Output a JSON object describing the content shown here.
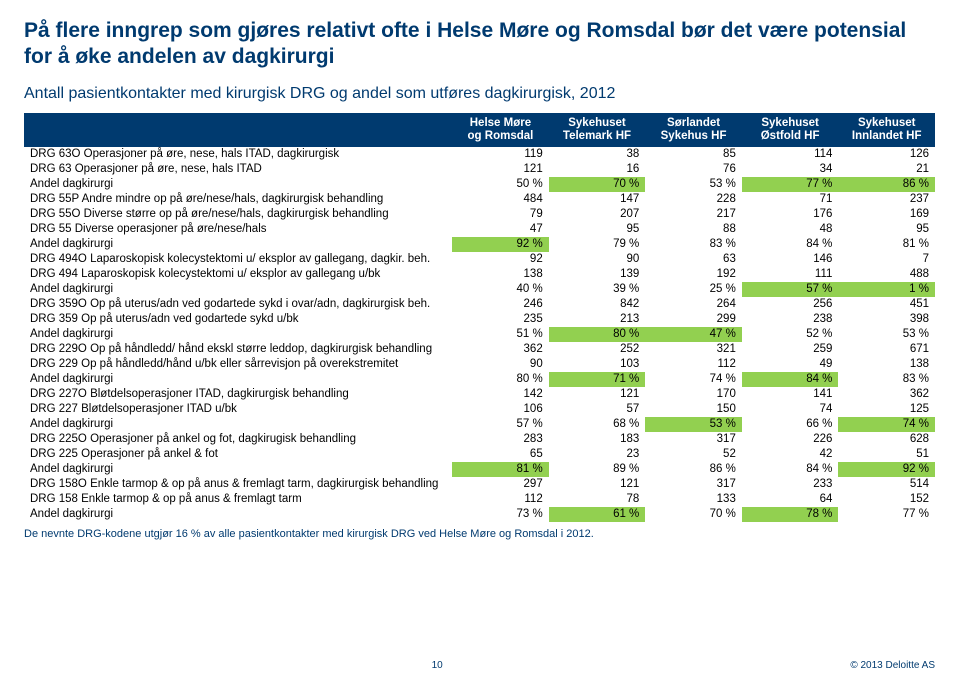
{
  "title": "På flere inngrep som gjøres relativt ofte i Helse Møre og Romsdal bør det være potensial for å øke andelen av dagkirurgi",
  "subtitle": "Antall pasientkontakter med kirurgisk DRG og andel som utføres dagkirurgisk, 2012",
  "columns": [
    {
      "line1": "Helse Møre",
      "line2": "og Romsdal"
    },
    {
      "line1": "Sykehuset",
      "line2": "Telemark HF"
    },
    {
      "line1": "Sørlandet",
      "line2": "Sykehus HF"
    },
    {
      "line1": "Sykehuset",
      "line2": "Østfold HF"
    },
    {
      "line1": "Sykehuset",
      "line2": "Innlandet HF"
    }
  ],
  "rows": [
    {
      "label": "DRG 63O Operasjoner på øre, nese, hals ITAD, dagkirurgisk",
      "v": [
        "119",
        "38",
        "85",
        "114",
        "126"
      ]
    },
    {
      "label": "DRG 63 Operasjoner på øre, nese, hals ITAD",
      "v": [
        "121",
        "16",
        "76",
        "34",
        "21"
      ]
    },
    {
      "label": "Andel dagkirurgi",
      "v": [
        "50 %",
        "70 %",
        "53 %",
        "77 %",
        "86 %"
      ],
      "andel": true,
      "hl": [
        1,
        3,
        4
      ]
    },
    {
      "label": "DRG 55P Andre mindre op på øre/nese/hals, dagkirurgisk behandling",
      "v": [
        "484",
        "147",
        "228",
        "71",
        "237"
      ]
    },
    {
      "label": "DRG 55O Diverse større op på øre/nese/hals, dagkirurgisk behandling",
      "v": [
        "79",
        "207",
        "217",
        "176",
        "169"
      ]
    },
    {
      "label": "DRG 55 Diverse operasjoner på øre/nese/hals",
      "v": [
        "47",
        "95",
        "88",
        "48",
        "95"
      ]
    },
    {
      "label": "Andel dagkirurgi",
      "v": [
        "92 %",
        "79 %",
        "83 %",
        "84 %",
        "81 %"
      ],
      "andel": true,
      "hl": [
        0
      ]
    },
    {
      "label": "DRG 494O Laparoskopisk kolecystektomi u/ eksplor av gallegang, dagkir. beh.",
      "v": [
        "92",
        "90",
        "63",
        "146",
        "7"
      ]
    },
    {
      "label": "DRG 494 Laparoskopisk kolecystektomi u/ eksplor av gallegang u/bk",
      "v": [
        "138",
        "139",
        "192",
        "111",
        "488"
      ]
    },
    {
      "label": "Andel dagkirurgi",
      "v": [
        "40 %",
        "39 %",
        "25 %",
        "57 %",
        "1 %"
      ],
      "andel": true,
      "hl": [
        3,
        4
      ]
    },
    {
      "label": "DRG 359O Op på uterus/adn ved godartede sykd i ovar/adn, dagkirurgisk beh.",
      "v": [
        "246",
        "842",
        "264",
        "256",
        "451"
      ]
    },
    {
      "label": "DRG 359 Op på uterus/adn ved godartede sykd u/bk",
      "v": [
        "235",
        "213",
        "299",
        "238",
        "398"
      ]
    },
    {
      "label": "Andel dagkirurgi",
      "v": [
        "51 %",
        "80 %",
        "47 %",
        "52 %",
        "53 %"
      ],
      "andel": true,
      "hl": [
        1,
        2
      ]
    },
    {
      "label": "DRG 229O Op på håndledd/ hånd ekskl større leddop, dagkirurgisk behandling",
      "v": [
        "362",
        "252",
        "321",
        "259",
        "671"
      ]
    },
    {
      "label": "DRG 229 Op på håndledd/hånd u/bk eller sårrevisjon på overekstremitet",
      "v": [
        "90",
        "103",
        "112",
        "49",
        "138"
      ]
    },
    {
      "label": "Andel dagkirurgi",
      "v": [
        "80 %",
        "71 %",
        "74 %",
        "84 %",
        "83 %"
      ],
      "andel": true,
      "hl": [
        1,
        3
      ]
    },
    {
      "label": "DRG 227O Bløtdelsoperasjoner ITAD, dagkirurgisk behandling",
      "v": [
        "142",
        "121",
        "170",
        "141",
        "362"
      ]
    },
    {
      "label": "DRG 227 Bløtdelsoperasjoner ITAD u/bk",
      "v": [
        "106",
        "57",
        "150",
        "74",
        "125"
      ]
    },
    {
      "label": "Andel dagkirurgi",
      "v": [
        "57 %",
        "68 %",
        "53 %",
        "66 %",
        "74 %"
      ],
      "andel": true,
      "hl": [
        2,
        4
      ]
    },
    {
      "label": "DRG 225O Operasjoner på ankel og fot, dagkirugisk behandling",
      "v": [
        "283",
        "183",
        "317",
        "226",
        "628"
      ]
    },
    {
      "label": "DRG 225 Operasjoner på ankel & fot",
      "v": [
        "65",
        "23",
        "52",
        "42",
        "51"
      ]
    },
    {
      "label": "Andel dagkirurgi",
      "v": [
        "81 %",
        "89 %",
        "86 %",
        "84 %",
        "92 %"
      ],
      "andel": true,
      "hl": [
        0,
        4
      ]
    },
    {
      "label": "DRG 158O Enkle tarmop & op på anus & fremlagt tarm, dagkirurgisk behandling",
      "v": [
        "297",
        "121",
        "317",
        "233",
        "514"
      ]
    },
    {
      "label": "DRG 158 Enkle tarmop & op på anus & fremlagt tarm",
      "v": [
        "112",
        "78",
        "133",
        "64",
        "152"
      ]
    },
    {
      "label": "Andel dagkirurgi",
      "v": [
        "73 %",
        "61 %",
        "70 %",
        "78 %",
        "77 %"
      ],
      "andel": true,
      "hl": [
        1,
        3
      ]
    }
  ],
  "footnote": "De nevnte DRG-kodene utgjør 16 % av alle pasientkontakter med kirurgisk DRG ved Helse Møre og Romsdal i 2012.",
  "footer": {
    "page": "10",
    "copy": "© 2013 Deloitte AS"
  },
  "style": {
    "header_bg": "#003a6f",
    "header_fg": "#ffffff",
    "highlight_bg": "#92d050",
    "body_font_size": 11.5,
    "title_font_size": 21,
    "subtitle_font_size": 16,
    "title_color": "#003a6f",
    "col_widths_pct": [
      47,
      10.6,
      10.6,
      10.6,
      10.6,
      10.6
    ]
  }
}
